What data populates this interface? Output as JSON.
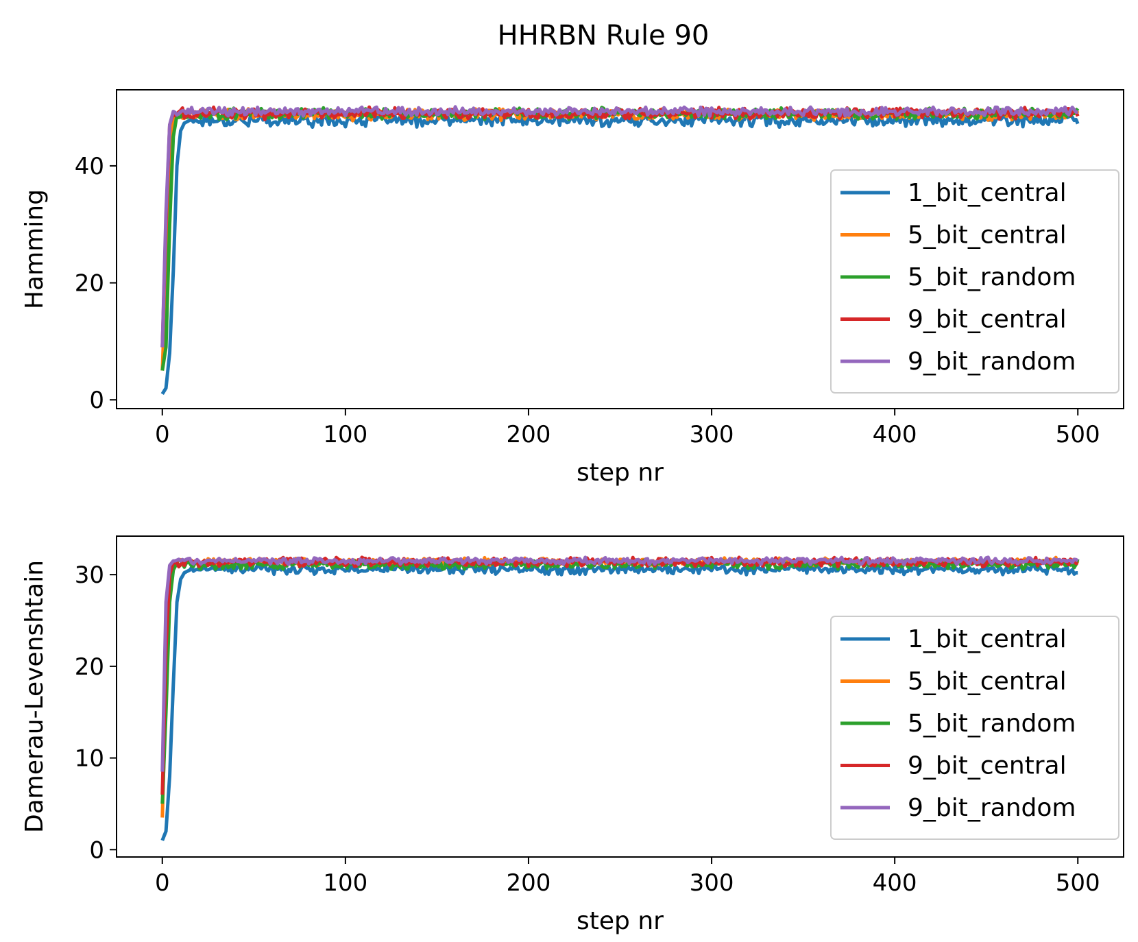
{
  "figure": {
    "title": "HHRBN Rule 90"
  },
  "chart_data": [
    {
      "type": "line",
      "title": "",
      "xlabel": "step nr",
      "ylabel": "Hamming",
      "xlim": [
        -25,
        525
      ],
      "ylim": [
        -1.5,
        53
      ],
      "xticks": [
        0,
        100,
        200,
        300,
        400,
        500
      ],
      "yticks": [
        0,
        20,
        40
      ],
      "grid": false,
      "legend_position": "center-right",
      "x_summary": "steps 0..500",
      "series": [
        {
          "name": "1_bit_central",
          "color": "#1f77b4",
          "ramp": [
            [
              0,
              1
            ],
            [
              2,
              2
            ],
            [
              4,
              8
            ],
            [
              6,
              22
            ],
            [
              8,
              40
            ],
            [
              10,
              46
            ],
            [
              12,
              47.3
            ],
            [
              15,
              47.8
            ]
          ],
          "plateau": 47.8,
          "noise": 0.9,
          "final": 47.2
        },
        {
          "name": "5_bit_central",
          "color": "#ff7f0e",
          "ramp": [
            [
              0,
              5
            ],
            [
              2,
              22
            ],
            [
              4,
              42
            ],
            [
              6,
              48
            ],
            [
              8,
              48.8
            ]
          ],
          "plateau": 48.8,
          "noise": 0.8,
          "final": 49.0
        },
        {
          "name": "5_bit_random",
          "color": "#2ca02c",
          "ramp": [
            [
              0,
              5
            ],
            [
              2,
              9
            ],
            [
              4,
              30
            ],
            [
              6,
              45
            ],
            [
              8,
              48.7
            ]
          ],
          "plateau": 48.9,
          "noise": 0.8,
          "final": 49.8
        },
        {
          "name": "9_bit_central",
          "color": "#d62728",
          "ramp": [
            [
              0,
              9
            ],
            [
              2,
              30
            ],
            [
              4,
              47
            ],
            [
              6,
              49
            ]
          ],
          "plateau": 49.0,
          "noise": 0.8,
          "final": 48.5
        },
        {
          "name": "9_bit_random",
          "color": "#9467bd",
          "ramp": [
            [
              0,
              9
            ],
            [
              2,
              32
            ],
            [
              4,
              47
            ],
            [
              6,
              49.3
            ]
          ],
          "plateau": 49.3,
          "noise": 0.6,
          "final": 49.2
        }
      ]
    },
    {
      "type": "line",
      "title": "",
      "xlabel": "step nr",
      "ylabel": "Damerau-Levenshtain",
      "xlim": [
        -25,
        525
      ],
      "ylim": [
        -0.8,
        34.2
      ],
      "xticks": [
        0,
        100,
        200,
        300,
        400,
        500
      ],
      "yticks": [
        0,
        10,
        20,
        30
      ],
      "grid": false,
      "legend_position": "center-right",
      "x_summary": "steps 0..500",
      "series": [
        {
          "name": "1_bit_central",
          "color": "#1f77b4",
          "ramp": [
            [
              0,
              1
            ],
            [
              2,
              2
            ],
            [
              4,
              8
            ],
            [
              6,
              18
            ],
            [
              8,
              27
            ],
            [
              10,
              29.5
            ],
            [
              12,
              30.2
            ],
            [
              15,
              30.5
            ]
          ],
          "plateau": 30.6,
          "noise": 0.45,
          "final": 30.2
        },
        {
          "name": "5_bit_central",
          "color": "#ff7f0e",
          "ramp": [
            [
              0,
              3.5
            ],
            [
              2,
              18
            ],
            [
              4,
              29
            ],
            [
              6,
              31
            ]
          ],
          "plateau": 31.4,
          "noise": 0.35,
          "final": 31.5
        },
        {
          "name": "5_bit_random",
          "color": "#2ca02c",
          "ramp": [
            [
              0,
              5
            ],
            [
              2,
              15
            ],
            [
              4,
              27
            ],
            [
              6,
              30.5
            ]
          ],
          "plateau": 31.1,
          "noise": 0.4,
          "final": 31.7
        },
        {
          "name": "9_bit_central",
          "color": "#d62728",
          "ramp": [
            [
              0,
              6
            ],
            [
              2,
              22
            ],
            [
              4,
              30
            ],
            [
              6,
              31.3
            ]
          ],
          "plateau": 31.4,
          "noise": 0.4,
          "final": 31.3
        },
        {
          "name": "9_bit_random",
          "color": "#9467bd",
          "ramp": [
            [
              0,
              8.5
            ],
            [
              2,
              27
            ],
            [
              4,
              31
            ],
            [
              6,
              31.5
            ]
          ],
          "plateau": 31.5,
          "noise": 0.3,
          "final": 31.5
        }
      ]
    }
  ]
}
